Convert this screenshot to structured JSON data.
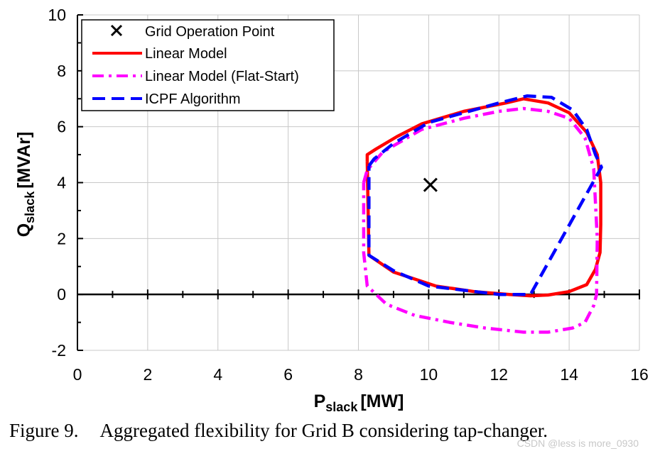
{
  "chart_data": {
    "type": "line",
    "xlabel_main": "P",
    "xlabel_sub": "slack",
    "xlabel_unit": "[MW]",
    "ylabel_main": "Q",
    "ylabel_sub": "slack",
    "ylabel_unit": "[MVAr]",
    "xlim": [
      0,
      16
    ],
    "ylim": [
      -2,
      10
    ],
    "xticks": [
      "0",
      "2",
      "4",
      "6",
      "8",
      "10",
      "12",
      "14",
      "16"
    ],
    "yticks": [
      "-2",
      "0",
      "2",
      "4",
      "6",
      "8",
      "10"
    ],
    "grid": true,
    "legend_position": "top-left",
    "grid_operation_point": {
      "name": "Grid Operation Point",
      "x": 10.05,
      "y": 3.92,
      "color": "#000000"
    },
    "series": [
      {
        "name": "Linear Model",
        "color": "#ff0000",
        "style": "solid",
        "x": [
          8.25,
          8.25,
          8.5,
          9.1,
          9.8,
          11.0,
          12.2,
          12.7,
          13.4,
          14.0,
          14.5,
          14.8,
          14.9,
          14.9,
          14.88,
          14.75,
          14.5,
          14.0,
          13.4,
          12.9,
          12.3,
          11.3,
          10.2,
          9.0,
          8.3,
          8.25
        ],
        "y": [
          4.75,
          5.0,
          5.2,
          5.65,
          6.1,
          6.55,
          6.85,
          7.0,
          6.85,
          6.5,
          5.8,
          5.0,
          4.0,
          2.5,
          1.5,
          0.9,
          0.35,
          0.1,
          -0.02,
          -0.05,
          0.0,
          0.1,
          0.3,
          0.8,
          1.4,
          4.75
        ]
      },
      {
        "name": "Linear Model (Flat-Start)",
        "color": "#ff00ff",
        "style": "dashdot",
        "x": [
          8.15,
          8.25,
          8.7,
          9.8,
          11.0,
          12.0,
          12.7,
          13.4,
          14.0,
          14.45,
          14.7,
          14.8,
          14.78,
          14.7,
          14.45,
          14.1,
          13.4,
          12.7,
          11.6,
          10.6,
          9.6,
          8.8,
          8.25,
          8.15,
          8.15
        ],
        "y": [
          4.0,
          4.45,
          5.1,
          5.9,
          6.3,
          6.55,
          6.65,
          6.55,
          6.3,
          5.6,
          4.5,
          2.0,
          0.0,
          -0.4,
          -1.0,
          -1.2,
          -1.35,
          -1.35,
          -1.2,
          -1.0,
          -0.75,
          -0.35,
          0.3,
          1.5,
          4.0
        ]
      },
      {
        "name": "ICPF Algorithm",
        "color": "#0000ff",
        "style": "dash",
        "x": [
          8.3,
          8.45,
          9.0,
          10.0,
          11.0,
          12.0,
          12.8,
          13.5,
          14.1,
          14.5,
          14.75,
          14.92,
          12.9,
          12.0,
          10.0,
          9.0,
          8.3,
          8.3
        ],
        "y": [
          4.6,
          4.85,
          5.4,
          6.15,
          6.5,
          6.85,
          7.1,
          7.05,
          6.6,
          5.9,
          5.0,
          4.55,
          0.0,
          0.0,
          0.3,
          0.85,
          1.4,
          4.6
        ]
      }
    ]
  },
  "caption": {
    "number": "Figure 9.",
    "text": "Aggregated flexibility for Grid B considering tap-changer."
  },
  "watermark": "CSDN @less is more_0930"
}
